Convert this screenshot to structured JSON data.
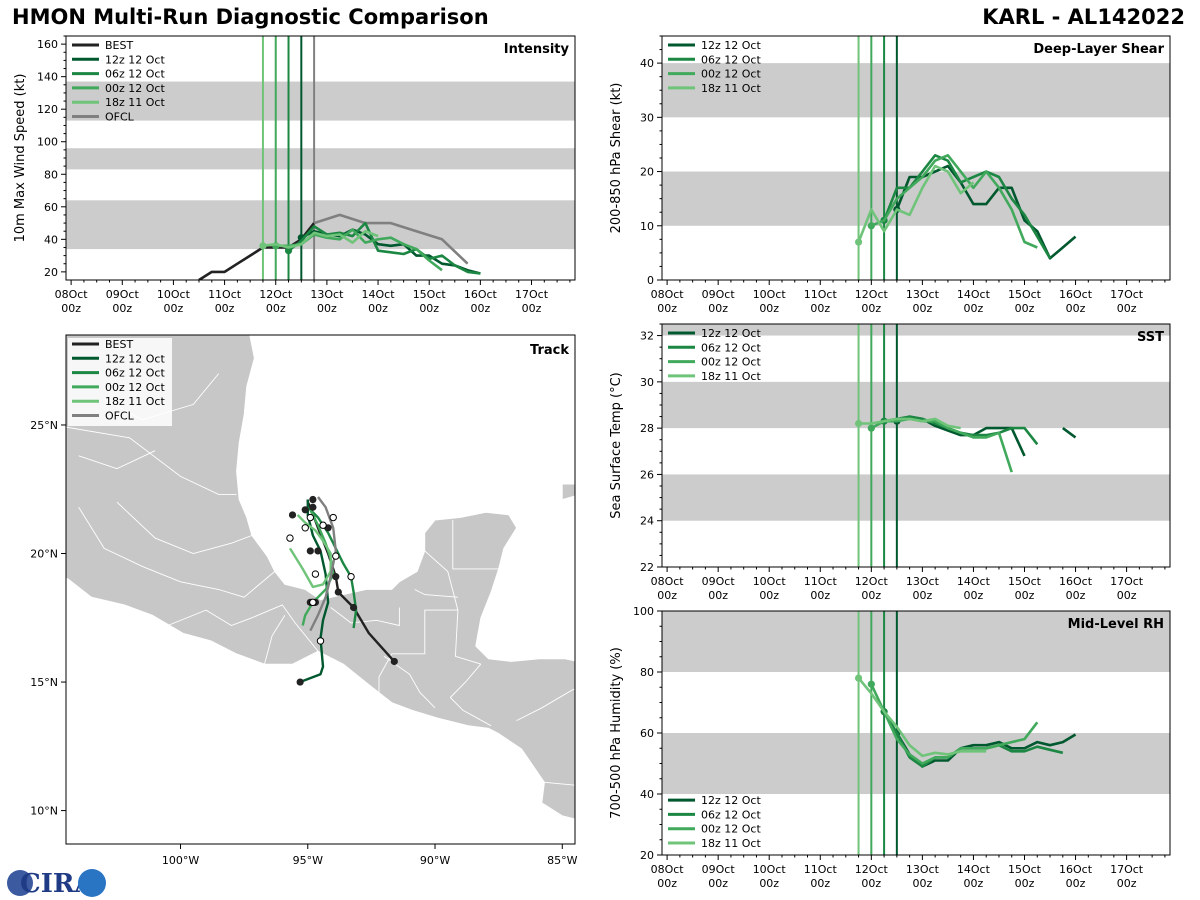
{
  "header": {
    "title": "HMON Multi-Run Diagnostic Comparison",
    "storm": "KARL - AL142022"
  },
  "colors": {
    "BEST": "#222222",
    "12z 12 Oct": "#00582f",
    "06z 12 Oct": "#1c8743",
    "00z 12 Oct": "#41a95c",
    "18z 11 Oct": "#6fc47a",
    "OFCL": "#808080",
    "band": "#cccccc",
    "land": "#c7c7c7"
  },
  "time_ticks": [
    "08Oct",
    "09Oct",
    "10Oct",
    "11Oct",
    "12Oct",
    "13Oct",
    "14Oct",
    "15Oct",
    "16Oct",
    "17Oct"
  ],
  "time_tick_sub": "00z",
  "init_times": [
    11.75,
    12.0,
    12.25,
    12.5
  ],
  "chart_data": [
    {
      "id": "intensity",
      "type": "line",
      "title": "Intensity",
      "ylabel": "10m Max Wind Speed (kt)",
      "xlim": [
        7.9,
        17.85
      ],
      "ylim": [
        15,
        165
      ],
      "yticks": [
        20,
        40,
        60,
        80,
        100,
        120,
        140,
        160
      ],
      "bands": [
        [
          34,
          64
        ],
        [
          83,
          96
        ],
        [
          113,
          137
        ]
      ],
      "legend": [
        "BEST",
        "12z 12 Oct",
        "06z 12 Oct",
        "00z 12 Oct",
        "18z 11 Oct",
        "OFCL"
      ],
      "ofcl_line": 12.75,
      "series": [
        {
          "name": "BEST",
          "x": [
            10.5,
            10.75,
            11.0,
            11.25,
            11.5,
            11.75,
            12.0,
            12.25,
            12.5,
            12.75
          ],
          "y": [
            15,
            20,
            20,
            25,
            30,
            35,
            35,
            35,
            40,
            50
          ],
          "start": false
        },
        {
          "name": "OFCL",
          "x": [
            12.75,
            13.25,
            13.75,
            14.25,
            14.75,
            15.25,
            15.75
          ],
          "y": [
            50,
            55,
            50,
            50,
            45,
            40,
            25
          ],
          "start": false
        },
        {
          "name": "12z 12 Oct",
          "x": [
            12.5,
            12.75,
            13.0,
            13.25,
            13.5,
            13.75,
            14.0,
            14.25,
            14.5,
            14.75,
            15.0,
            15.25,
            15.5,
            15.75,
            16.0
          ],
          "y": [
            41,
            45,
            43,
            42,
            46,
            43,
            37,
            36,
            37,
            30,
            30,
            25,
            24,
            21,
            19
          ],
          "start": true
        },
        {
          "name": "06z 12 Oct",
          "x": [
            12.25,
            12.5,
            12.75,
            13.0,
            13.25,
            13.5,
            13.75,
            14.0,
            14.25,
            14.5,
            14.75,
            15.0,
            15.25,
            15.5,
            15.75,
            16.0
          ],
          "y": [
            33,
            39,
            48,
            43,
            44,
            42,
            50,
            33,
            32,
            31,
            34,
            28,
            30,
            24,
            20,
            19
          ],
          "start": true
        },
        {
          "name": "00z 12 Oct",
          "x": [
            12.0,
            12.25,
            12.5,
            12.75,
            13.0,
            13.25,
            13.5,
            13.75,
            14.0,
            14.25,
            14.5,
            14.75,
            15.0,
            15.25
          ],
          "y": [
            36,
            36,
            37,
            43,
            41,
            40,
            46,
            38,
            40,
            41,
            37,
            34,
            27,
            21
          ],
          "start": true
        },
        {
          "name": "18z 11 Oct",
          "x": [
            11.75,
            12.0,
            12.25,
            12.5,
            12.75,
            13.0,
            13.25,
            13.5,
            13.75,
            14.0
          ],
          "y": [
            36,
            37,
            35,
            37,
            44,
            42,
            43,
            38,
            45,
            42
          ],
          "start": true
        }
      ]
    },
    {
      "id": "shear",
      "type": "line",
      "title": "Deep-Layer Shear",
      "ylabel": "200-850 hPa Shear (kt)",
      "xlim": [
        7.9,
        17.85
      ],
      "ylim": [
        0,
        45
      ],
      "yticks": [
        0,
        10,
        20,
        30,
        40
      ],
      "bands": [
        [
          10,
          20
        ],
        [
          30,
          40
        ]
      ],
      "legend": [
        "12z 12 Oct",
        "06z 12 Oct",
        "00z 12 Oct",
        "18z 11 Oct"
      ],
      "series": [
        {
          "name": "12z 12 Oct",
          "x": [
            12.5,
            12.75,
            13.0,
            13.25,
            13.5,
            13.75,
            14.0,
            14.25,
            14.5,
            14.75,
            15.0,
            15.25,
            15.5,
            15.75,
            16.0
          ],
          "y": [
            13,
            19,
            19,
            20,
            21,
            18,
            14,
            14,
            17,
            17,
            11,
            9,
            4,
            6,
            8
          ],
          "start": true
        },
        {
          "name": "06z 12 Oct",
          "x": [
            12.25,
            12.5,
            12.75,
            13.0,
            13.25,
            13.5,
            13.75,
            14.0,
            14.25,
            14.5,
            14.75,
            15.0,
            15.25,
            15.5
          ],
          "y": [
            11,
            17,
            17,
            20,
            23,
            22,
            18,
            19,
            20,
            19,
            15,
            12,
            8,
            4
          ],
          "start": true
        },
        {
          "name": "00z 12 Oct",
          "x": [
            12.0,
            12.25,
            12.5,
            12.75,
            13.0,
            13.25,
            13.5,
            13.75,
            14.0,
            14.25,
            14.5,
            14.75,
            15.0,
            15.25
          ],
          "y": [
            10,
            11,
            15,
            17,
            19,
            22,
            23,
            20,
            17,
            20,
            17,
            13,
            7,
            6
          ],
          "start": true
        },
        {
          "name": "18z 11 Oct",
          "x": [
            11.75,
            12.0,
            12.25,
            12.5,
            12.75,
            13.0,
            13.25,
            13.5,
            13.75,
            14.0
          ],
          "y": [
            7,
            13,
            9,
            13,
            12,
            17,
            21,
            20,
            16,
            18
          ],
          "start": true
        }
      ]
    },
    {
      "id": "sst",
      "type": "line",
      "title": "SST",
      "ylabel": "Sea Surface Temp (°C)",
      "xlim": [
        7.9,
        17.85
      ],
      "ylim": [
        22,
        32.5
      ],
      "yticks": [
        22,
        24,
        26,
        28,
        30,
        32
      ],
      "bands": [
        [
          24,
          26
        ],
        [
          28,
          30
        ],
        [
          32,
          34
        ]
      ],
      "legend": [
        "12z 12 Oct",
        "06z 12 Oct",
        "00z 12 Oct",
        "18z 11 Oct"
      ],
      "series": [
        {
          "name": "12z 12 Oct",
          "x": [
            12.5,
            12.75,
            13.0,
            13.25,
            13.5,
            13.75,
            14.0,
            14.25,
            14.5,
            14.75,
            15.0
          ],
          "y": [
            28.3,
            28.5,
            28.4,
            28.1,
            27.9,
            27.7,
            27.7,
            28.0,
            28.0,
            28.0,
            26.8
          ],
          "start": true
        },
        {
          "name": "12z 12 Oct",
          "x": [
            15.75,
            16.0
          ],
          "y": [
            28.0,
            27.6
          ],
          "start": false
        },
        {
          "name": "06z 12 Oct",
          "x": [
            12.25,
            12.5,
            12.75,
            13.0,
            13.25,
            13.5,
            13.75,
            14.0,
            14.25,
            14.5,
            14.75,
            15.0,
            15.25
          ],
          "y": [
            28.3,
            28.4,
            28.5,
            28.4,
            28.2,
            28.0,
            27.8,
            27.7,
            27.7,
            27.8,
            28.0,
            28.0,
            27.3
          ],
          "start": true
        },
        {
          "name": "00z 12 Oct",
          "x": [
            12.0,
            12.25,
            12.5,
            12.75,
            13.0,
            13.25,
            13.5,
            13.75,
            14.0,
            14.25,
            14.5,
            14.75
          ],
          "y": [
            28.0,
            28.3,
            28.3,
            28.4,
            28.3,
            28.3,
            28.0,
            27.8,
            27.6,
            27.6,
            27.8,
            26.1
          ],
          "start": true
        },
        {
          "name": "18z 11 Oct",
          "x": [
            11.75,
            12.0,
            12.25,
            12.5,
            12.75,
            13.0,
            13.25,
            13.5,
            13.75
          ],
          "y": [
            28.2,
            28.2,
            28.3,
            28.4,
            28.4,
            28.3,
            28.4,
            28.1,
            28.0
          ],
          "start": true
        }
      ]
    },
    {
      "id": "rh",
      "type": "line",
      "title": "Mid-Level RH",
      "ylabel": "700-500 hPa Humidity (%)",
      "xlim": [
        7.9,
        17.85
      ],
      "ylim": [
        20,
        100
      ],
      "yticks": [
        20,
        40,
        60,
        80,
        100
      ],
      "bands": [
        [
          40,
          60
        ],
        [
          80,
          100
        ]
      ],
      "legend": [
        "12z 12 Oct",
        "06z 12 Oct",
        "00z 12 Oct",
        "18z 11 Oct"
      ],
      "legend_pos": "bottom-left",
      "series": [
        {
          "name": "12z 12 Oct",
          "x": [
            12.5,
            12.75,
            13.0,
            13.25,
            13.5,
            13.75,
            14.0,
            14.25,
            14.5,
            14.75,
            15.0,
            15.25,
            15.5,
            15.75,
            16.0
          ],
          "y": [
            60,
            53,
            49,
            51,
            51,
            55,
            56,
            56,
            57,
            55,
            55,
            57,
            56,
            57,
            59.5
          ],
          "start": true
        },
        {
          "name": "06z 12 Oct",
          "x": [
            12.25,
            12.5,
            12.75,
            13.0,
            13.25,
            13.5,
            13.75,
            14.0,
            14.25,
            14.5,
            14.75,
            15.0,
            15.25,
            15.5,
            15.75
          ],
          "y": [
            67,
            60,
            52,
            49,
            52,
            52,
            55,
            55,
            55,
            56,
            54,
            54,
            55.5,
            54.5,
            53.5
          ],
          "start": true
        },
        {
          "name": "00z 12 Oct",
          "x": [
            12.0,
            12.25,
            12.5,
            12.75,
            13.0,
            13.25,
            13.5,
            13.75,
            14.0,
            14.25,
            14.5,
            14.75,
            15.0,
            15.25
          ],
          "y": [
            76,
            67,
            58,
            53,
            50,
            52,
            52,
            55,
            55,
            55,
            56,
            57,
            58,
            63.5
          ],
          "start": true
        },
        {
          "name": "18z 11 Oct",
          "x": [
            11.75,
            12.0,
            12.25,
            12.5,
            12.75,
            13.0,
            13.25,
            13.5,
            13.75,
            14.0,
            14.25
          ],
          "y": [
            78,
            73,
            67,
            62,
            56,
            52.5,
            53.5,
            53,
            54,
            54,
            54
          ],
          "start": true
        }
      ]
    },
    {
      "id": "track",
      "type": "scatter",
      "title": "Track",
      "xlim": [
        -104.5,
        -84.5
      ],
      "ylim": [
        8.7,
        28.5
      ],
      "xticks": [
        -100,
        -95,
        -90,
        -85
      ],
      "xtick_labels": [
        "100°W",
        "95°W",
        "90°W",
        "85°W"
      ],
      "yticks": [
        10,
        15,
        20,
        25
      ],
      "ytick_labels": [
        "10°N",
        "15°N",
        "20°N",
        "25°N"
      ],
      "legend": [
        "BEST",
        "12z 12 Oct",
        "06z 12 Oct",
        "00z 12 Oct",
        "18z 11 Oct",
        "OFCL"
      ],
      "series": [
        {
          "name": "BEST",
          "lon": [
            -91.6,
            -92.6,
            -93.2,
            -93.8,
            -93.9,
            -94.2,
            -94.6,
            -94.9,
            -95.0,
            -95.0
          ],
          "lat": [
            15.8,
            16.9,
            17.9,
            18.5,
            19.1,
            20.0,
            21.0,
            21.8,
            22.0,
            22.1
          ]
        },
        {
          "name": "12z 12 Oct",
          "lon": [
            -95.0,
            -95.0,
            -94.8,
            -94.5,
            -94.3,
            -94.2,
            -94.4,
            -94.5,
            -94.4,
            -94.5,
            -95.3
          ],
          "lat": [
            22.1,
            21.5,
            20.7,
            20.1,
            19.2,
            18.1,
            17.4,
            16.7,
            15.6,
            15.3,
            15.0
          ]
        },
        {
          "name": "06z 12 Oct",
          "lon": [
            -95.0,
            -94.6,
            -94.2,
            -93.9,
            -93.6,
            -93.3,
            -93.2,
            -93.1,
            -93.2
          ],
          "lat": [
            21.8,
            21.4,
            20.8,
            20.2,
            19.6,
            19.1,
            18.5,
            17.8,
            17.1
          ]
        },
        {
          "name": "00z 12 Oct",
          "lon": [
            -94.9,
            -94.6,
            -94.3,
            -94.1,
            -94.0,
            -94.3,
            -94.8,
            -95.1,
            -95.2
          ],
          "lat": [
            21.7,
            21.1,
            20.4,
            19.8,
            19.2,
            18.6,
            18.1,
            17.6,
            17.2
          ]
        },
        {
          "name": "18z 11 Oct",
          "lon": [
            -95.4,
            -95.1,
            -94.7,
            -94.4,
            -94.1,
            -94.1,
            -94.4,
            -94.8,
            -95.2,
            -95.7
          ],
          "lat": [
            21.5,
            21.2,
            20.9,
            20.5,
            20.0,
            19.3,
            18.8,
            18.7,
            19.4,
            20.2
          ]
        },
        {
          "name": "OFCL",
          "lon": [
            -94.6,
            -94.3,
            -94.0,
            -93.9,
            -94.1,
            -94.3,
            -94.6,
            -94.9
          ],
          "lat": [
            22.2,
            21.8,
            21.0,
            20.1,
            19.1,
            18.3,
            17.6,
            17.0
          ]
        }
      ],
      "points": [
        {
          "lon": -91.6,
          "lat": 15.8,
          "kind": "best"
        },
        {
          "lon": -93.2,
          "lat": 17.9,
          "kind": "best"
        },
        {
          "lon": -93.8,
          "lat": 18.5,
          "kind": "best"
        },
        {
          "lon": -93.9,
          "lat": 19.1,
          "kind": "best"
        },
        {
          "lon": -94.6,
          "lat": 20.1,
          "kind": "best"
        },
        {
          "lon": -94.9,
          "lat": 20.1,
          "kind": "best"
        },
        {
          "lon": -95.1,
          "lat": 21.7,
          "kind": "best"
        },
        {
          "lon": -95.6,
          "lat": 21.5,
          "kind": "best"
        },
        {
          "lon": -94.8,
          "lat": 21.8,
          "kind": "best"
        },
        {
          "lon": -94.8,
          "lat": 22.1,
          "kind": "best"
        },
        {
          "lon": -94.2,
          "lat": 21.0,
          "kind": "best"
        },
        {
          "lon": -94.7,
          "lat": 18.1,
          "kind": "best"
        },
        {
          "lon": -94.9,
          "lat": 18.1,
          "kind": "best"
        },
        {
          "lon": -95.3,
          "lat": 15.0,
          "kind": "best"
        },
        {
          "lon": -95.7,
          "lat": 20.6,
          "kind": "fcst"
        },
        {
          "lon": -95.1,
          "lat": 21.0,
          "kind": "fcst"
        },
        {
          "lon": -94.4,
          "lat": 21.1,
          "kind": "fcst"
        },
        {
          "lon": -94.0,
          "lat": 21.4,
          "kind": "fcst"
        },
        {
          "lon": -93.9,
          "lat": 19.9,
          "kind": "fcst"
        },
        {
          "lon": -94.7,
          "lat": 19.2,
          "kind": "fcst"
        },
        {
          "lon": -93.3,
          "lat": 19.1,
          "kind": "fcst"
        },
        {
          "lon": -94.8,
          "lat": 18.1,
          "kind": "fcst"
        },
        {
          "lon": -94.5,
          "lat": 16.6,
          "kind": "fcst"
        },
        {
          "lon": -94.9,
          "lat": 21.4,
          "kind": "fcst"
        }
      ]
    }
  ],
  "logo": {
    "text": "CIRA"
  }
}
